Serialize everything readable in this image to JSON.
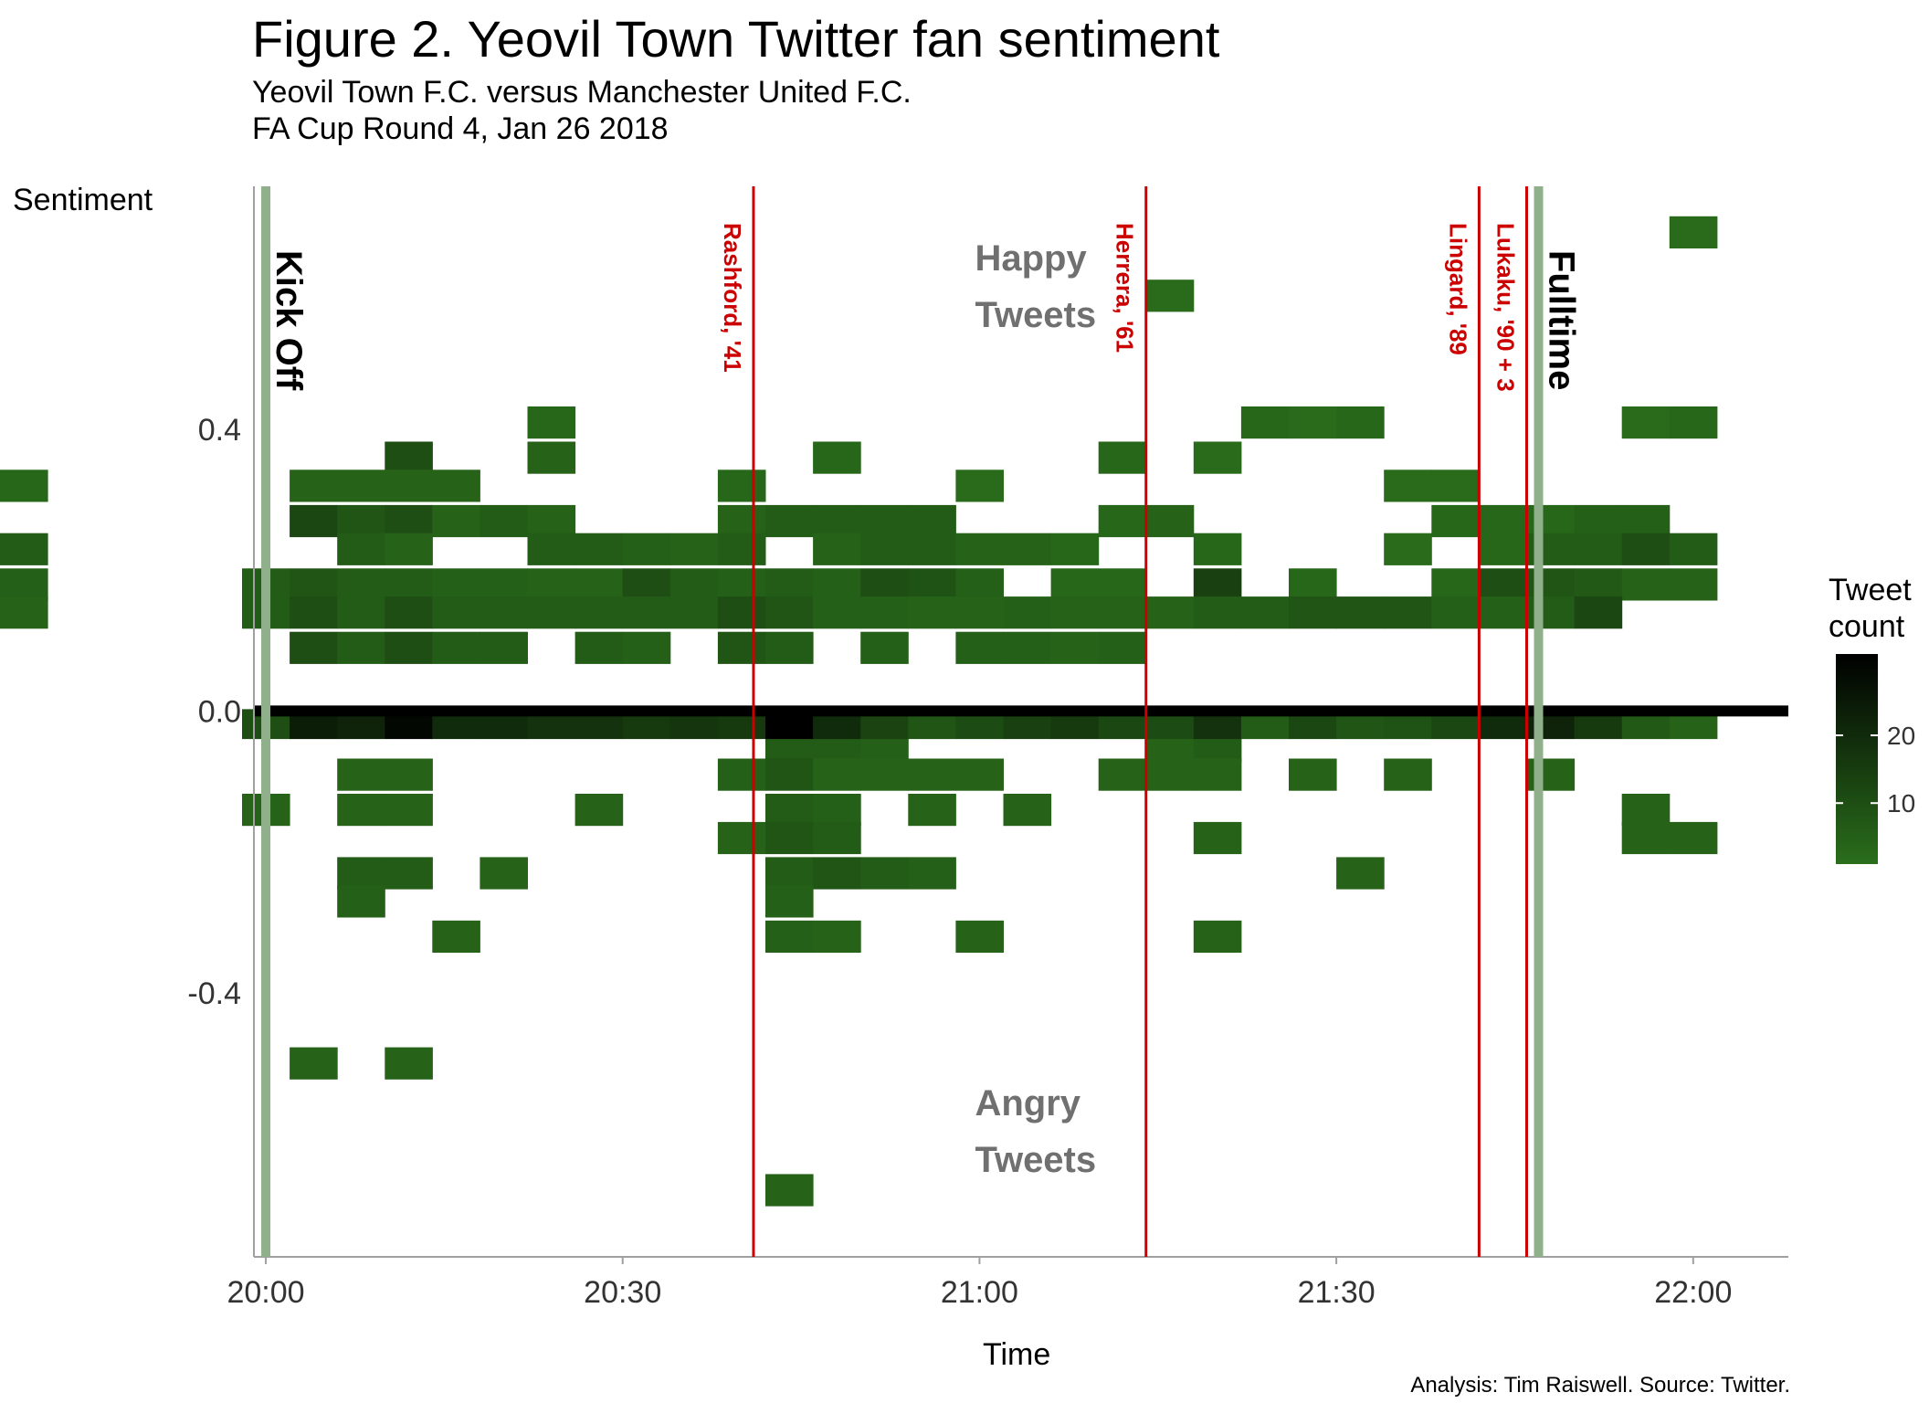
{
  "title": "Figure 2. Yeovil Town Twitter fan sentiment",
  "subtitle_1": "Yeovil Town F.C. versus Manchester United F.C.",
  "subtitle_2": "FA Cup Round 4, Jan 26 2018",
  "caption": "Analysis: Tim Raiswell. Source: Twitter.",
  "legend": {
    "title_line1": "Tweet",
    "title_line2": "count",
    "ticks": [
      10,
      20
    ],
    "range": [
      1,
      32
    ]
  },
  "colors": {
    "low": "#2a6e1c",
    "high": "#000000",
    "kickoff_line": "#8fb08a",
    "goal_line": "#cc0000",
    "zero_line": "#000000",
    "note_text": "#707070"
  },
  "chart_data": {
    "type": "heatmap",
    "x_axis": {
      "label": "Time",
      "range": [
        "19:59",
        "22:08"
      ],
      "ticks": [
        "20:00",
        "20:30",
        "21:00",
        "21:30",
        "22:00"
      ]
    },
    "y_axis": {
      "label": "Sentiment",
      "range": [
        -0.775,
        0.745
      ],
      "ticks": [
        "-0.4",
        "0.0",
        "0.4"
      ]
    },
    "bin_minutes": 4,
    "bin_sentiment": 0.045,
    "zero_line": 0.0,
    "events": [
      {
        "label": "Kick Off",
        "time": "20:00",
        "kind": "kickoff"
      },
      {
        "label": "Rashford, '41",
        "time": "20:41",
        "kind": "goal"
      },
      {
        "label": "Herrera, '61",
        "time": "21:14",
        "kind": "goal"
      },
      {
        "label": "Lingard, '89",
        "time": "21:42",
        "kind": "goal"
      },
      {
        "label": "Lukaku, '90 + 3",
        "time": "21:46",
        "kind": "goal"
      },
      {
        "label": "Fulltime",
        "time": "21:47",
        "kind": "fulltime"
      }
    ],
    "annotations": [
      {
        "lines": [
          "Happy",
          "Tweets"
        ],
        "time": "21:03",
        "sentiment": 0.6
      },
      {
        "lines": [
          "Angry",
          "Tweets"
        ],
        "time": "21:03",
        "sentiment": -0.6
      }
    ],
    "cells": [
      {
        "t": "19:58",
        "s": 0.01,
        "n": 10
      },
      {
        "t": "20:02",
        "s": 0.01,
        "n": 24
      },
      {
        "t": "20:06",
        "s": 0.01,
        "n": 22
      },
      {
        "t": "20:10",
        "s": 0.01,
        "n": 30
      },
      {
        "t": "20:14",
        "s": 0.01,
        "n": 20
      },
      {
        "t": "20:18",
        "s": 0.01,
        "n": 20
      },
      {
        "t": "20:22",
        "s": 0.01,
        "n": 18
      },
      {
        "t": "20:26",
        "s": 0.01,
        "n": 18
      },
      {
        "t": "20:30",
        "s": 0.01,
        "n": 16
      },
      {
        "t": "20:34",
        "s": 0.01,
        "n": 17
      },
      {
        "t": "20:38",
        "s": 0.01,
        "n": 16
      },
      {
        "t": "20:42",
        "s": 0.01,
        "n": 32
      },
      {
        "t": "20:46",
        "s": 0.01,
        "n": 20
      },
      {
        "t": "20:50",
        "s": 0.01,
        "n": 13
      },
      {
        "t": "20:54",
        "s": 0.01,
        "n": 8
      },
      {
        "t": "20:58",
        "s": 0.01,
        "n": 11
      },
      {
        "t": "21:02",
        "s": 0.01,
        "n": 14
      },
      {
        "t": "21:06",
        "s": 0.01,
        "n": 16
      },
      {
        "t": "21:10",
        "s": 0.01,
        "n": 12
      },
      {
        "t": "21:14",
        "s": 0.01,
        "n": 11
      },
      {
        "t": "21:18",
        "s": 0.01,
        "n": 18
      },
      {
        "t": "21:22",
        "s": 0.01,
        "n": 6
      },
      {
        "t": "21:26",
        "s": 0.01,
        "n": 12
      },
      {
        "t": "21:30",
        "s": 0.01,
        "n": 8
      },
      {
        "t": "21:34",
        "s": 0.01,
        "n": 9
      },
      {
        "t": "21:38",
        "s": 0.01,
        "n": 12
      },
      {
        "t": "21:42",
        "s": 0.01,
        "n": 20
      },
      {
        "t": "21:46",
        "s": 0.01,
        "n": 22
      },
      {
        "t": "21:50",
        "s": 0.01,
        "n": 16
      },
      {
        "t": "21:54",
        "s": 0.01,
        "n": 7
      },
      {
        "t": "21:58",
        "s": 0.01,
        "n": 4
      },
      {
        "t": "20:14",
        "s": 0.32,
        "n": 4
      },
      {
        "t": "20:18",
        "s": 0.32,
        "n": 3
      },
      {
        "t": "20:22",
        "s": 0.32,
        "n": 3
      },
      {
        "t": "20:10",
        "s": 0.25,
        "n": 6
      },
      {
        "t": "20:22",
        "s": 0.25,
        "n": 5
      },
      {
        "t": "20:46",
        "s": 0.41,
        "n": 4
      },
      {
        "t": "20:54",
        "s": 0.41,
        "n": 3
      },
      {
        "t": "21:02",
        "s": 0.41,
        "n": 2
      },
      {
        "t": "21:06",
        "s": 0.41,
        "n": 2
      },
      {
        "t": "21:10",
        "s": 0.41,
        "n": 3
      },
      {
        "t": "21:14",
        "s": 0.41,
        "n": 4
      },
      {
        "t": "21:18",
        "s": 0.41,
        "n": 2
      },
      {
        "t": "21:22",
        "s": 0.41,
        "n": 2
      },
      {
        "t": "21:54",
        "s": 0.41,
        "n": 3
      },
      {
        "t": "20:30",
        "s": 0.12,
        "n": 5
      },
      {
        "t": "20:34",
        "s": 0.12,
        "n": 4
      },
      {
        "t": "20:38",
        "s": 0.12,
        "n": 3
      },
      {
        "t": "20:50",
        "s": 0.12,
        "n": 6
      },
      {
        "t": "20:54",
        "s": 0.12,
        "n": 5
      },
      {
        "t": "20:58",
        "s": 0.12,
        "n": 4
      }
    ],
    "notes": "cells[] gives each shaded tile's bin start time, sentiment bin centre and tweet count; the tile layout itself is reproduced in the drawing script."
  }
}
